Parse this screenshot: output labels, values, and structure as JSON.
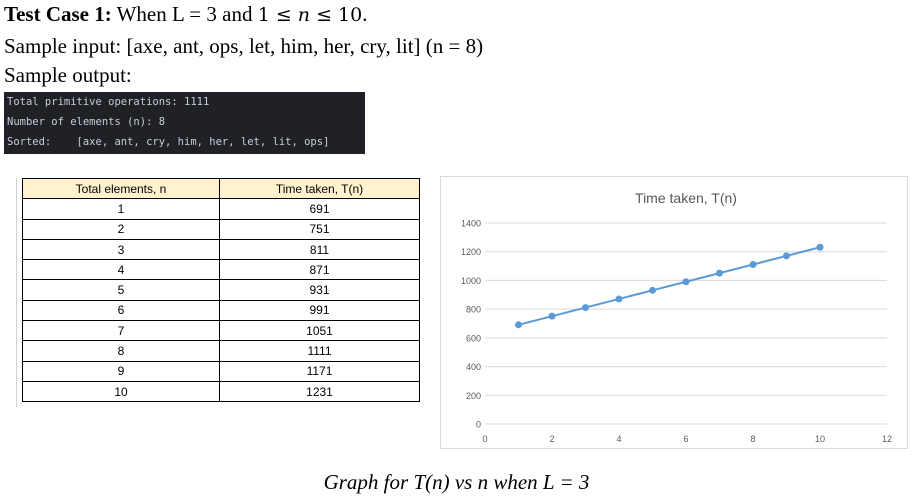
{
  "heading": {
    "label": "Test Case 1:",
    "text_when": " When L = 3 and ",
    "math_one": "1",
    "math_le1": " ≤ ",
    "math_n": "n",
    "math_le2": " ≤ ",
    "math_ten": "10",
    "text_end": "."
  },
  "sample_input": "Sample input: [axe, ant, ops, let, him, her, cry, lit] (n = 8)",
  "sample_output_label": "Sample output:",
  "console": {
    "lines": [
      "Total primitive operations: 1111",
      "Number of elements (n): 8",
      "Sorted:    [axe, ant, cry, him, her, let, lit, ops]"
    ]
  },
  "table": {
    "headers": [
      "Total elements, n",
      "Time taken, T(n)"
    ],
    "rows": [
      [
        "1",
        "691"
      ],
      [
        "2",
        "751"
      ],
      [
        "3",
        "811"
      ],
      [
        "4",
        "871"
      ],
      [
        "5",
        "931"
      ],
      [
        "6",
        "991"
      ],
      [
        "7",
        "1051"
      ],
      [
        "8",
        "1111"
      ],
      [
        "9",
        "1171"
      ],
      [
        "10",
        "1231"
      ]
    ]
  },
  "chart_data": {
    "type": "scatter",
    "title": "Time taken, T(n)",
    "x": [
      1,
      2,
      3,
      4,
      5,
      6,
      7,
      8,
      9,
      10
    ],
    "y": [
      691,
      751,
      811,
      871,
      931,
      991,
      1051,
      1111,
      1171,
      1231
    ],
    "xlim": [
      0,
      12
    ],
    "ylim": [
      0,
      1400
    ],
    "xticks": [
      0,
      2,
      4,
      6,
      8,
      10,
      12
    ],
    "yticks": [
      0,
      200,
      400,
      600,
      800,
      1000,
      1200,
      1400
    ],
    "grid": "horizontal",
    "markers_connected": true,
    "series_color": "#5b9bd5"
  },
  "caption": "Graph for T(n) vs n when L = 3"
}
